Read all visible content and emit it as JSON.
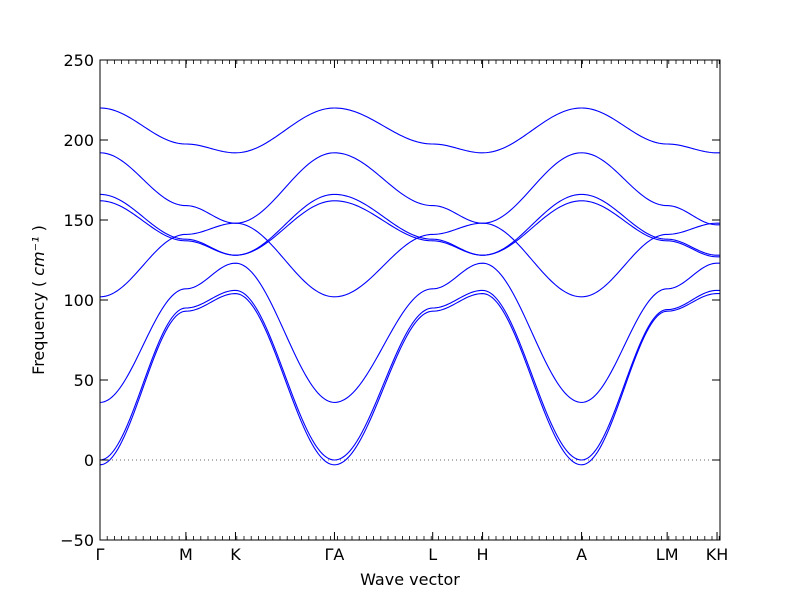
{
  "chart_data": {
    "type": "line",
    "title": "",
    "xlabel": "Wave vector",
    "ylabel": "Frequency",
    "ylabel_unit": "cm⁻¹",
    "ylim": [
      -50,
      250
    ],
    "yticks": [
      -50,
      0,
      50,
      100,
      150,
      200,
      250
    ],
    "xticks": [
      {
        "label": "Γ",
        "pos": 0.0
      },
      {
        "label": "M",
        "pos": 0.577
      },
      {
        "label": "K",
        "pos": 0.91
      },
      {
        "label": "ΓA",
        "pos": 1.575
      },
      {
        "label": "L",
        "pos": 2.235
      },
      {
        "label": "H",
        "pos": 2.57
      },
      {
        "label": "A",
        "pos": 3.235
      },
      {
        "label": "LM",
        "pos": 3.81
      },
      {
        "label": "KH",
        "pos": 4.145
      }
    ],
    "xlim": [
      0,
      4.165
    ],
    "zero_line": true,
    "line_color": "#0000ff",
    "segments": [
      {
        "x": [
          0.0,
          0.577,
          0.91,
          1.575
        ],
        "series": [
          {
            "values": [
              220,
              197.5,
              192,
              220
            ]
          },
          {
            "values": [
              192,
              159,
              148,
              192
            ]
          },
          {
            "values": [
              166,
              138,
              128,
              166
            ]
          },
          {
            "values": [
              162,
              137,
              128,
              162
            ]
          },
          {
            "values": [
              102,
              141,
              148,
              102
            ]
          },
          {
            "values": [
              36,
              107,
              123,
              36
            ]
          },
          {
            "values": [
              0,
              95,
              106,
              0
            ]
          },
          {
            "values": [
              -3,
              93,
              104,
              -3
            ]
          }
        ]
      },
      {
        "x": [
          1.575,
          2.235,
          2.57,
          3.235
        ],
        "series": [
          {
            "values": [
              220,
              197.5,
              192,
              220
            ]
          },
          {
            "values": [
              192,
              159,
              148,
              192
            ]
          },
          {
            "values": [
              166,
              138,
              128,
              166
            ]
          },
          {
            "values": [
              162,
              137,
              128,
              162
            ]
          },
          {
            "values": [
              102,
              141,
              148,
              102
            ]
          },
          {
            "values": [
              36,
              107,
              123,
              36
            ]
          },
          {
            "values": [
              0,
              95,
              106,
              0
            ]
          },
          {
            "values": [
              -3,
              93,
              104,
              -3
            ]
          }
        ]
      },
      {
        "x": [
          3.235,
          3.81,
          3.81,
          4.145,
          4.165
        ],
        "series": [
          {
            "values": [
              220,
              197.5,
              197.5,
              192,
              192
            ]
          },
          {
            "values": [
              192,
              159,
              159,
              147,
              147
            ]
          },
          {
            "values": [
              166,
              138,
              138,
              128,
              128
            ]
          },
          {
            "values": [
              162,
              137,
              137,
              127,
              127
            ]
          },
          {
            "values": [
              102,
              141,
              141,
              148,
              148
            ]
          },
          {
            "values": [
              36,
              107,
              107,
              123,
              123
            ]
          },
          {
            "values": [
              0,
              94,
              94,
              106,
              106
            ]
          },
          {
            "values": [
              -3,
              93,
              93,
              104,
              104
            ]
          }
        ]
      }
    ]
  }
}
